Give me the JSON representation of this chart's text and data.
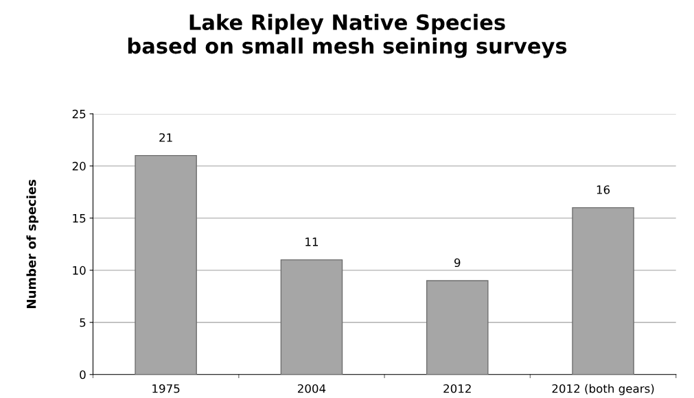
{
  "chart_data": {
    "type": "bar",
    "title": "Lake Ripley Native Species\nbased on small mesh seining surveys",
    "ylabel": "Number of species",
    "categories": [
      "1975",
      "2004",
      "2012",
      "2012 (both gears)"
    ],
    "values": [
      21,
      11,
      9,
      16
    ],
    "color": "#a6a6a6",
    "ylim": [
      0,
      25
    ],
    "yticks": [
      0,
      5,
      10,
      15,
      20,
      25
    ],
    "grid": "y",
    "data_labels": true
  }
}
